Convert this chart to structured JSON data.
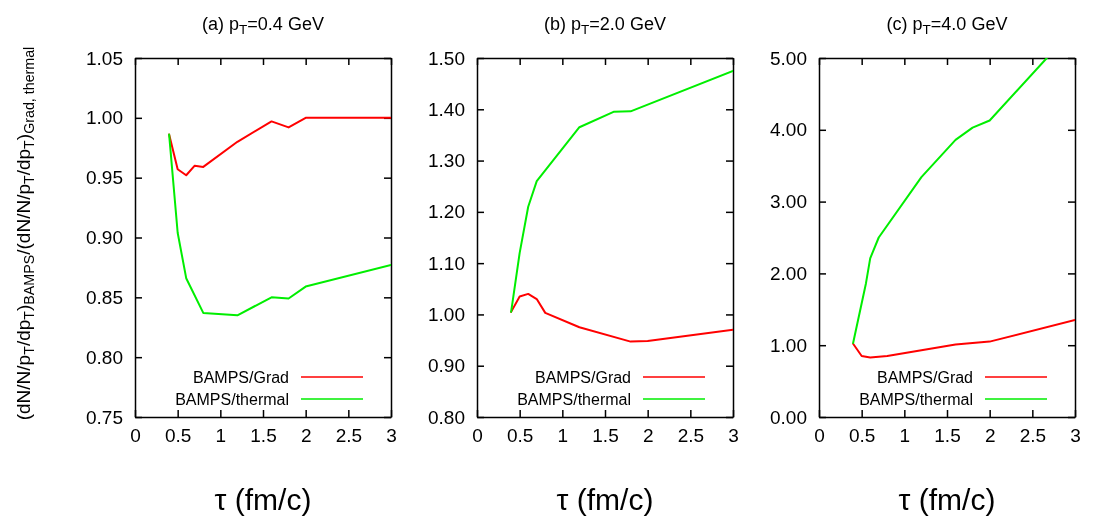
{
  "chart_data": [
    {
      "type": "line",
      "title": "(a) p$_{T}$=0.4 GeV",
      "xlabel": "τ (fm/c)",
      "ylabel": "(dN/N/p$_{T}$/dp$_{T}$)$_{BAMPS}$/(dN/N/p$_{T}$/dp$_{T}$)$_{Grad, thermal}$",
      "xlim": [
        0,
        3
      ],
      "xticks": [
        0,
        0.5,
        1,
        1.5,
        2,
        2.5,
        3
      ],
      "ylim": [
        0.75,
        1.05
      ],
      "yticks": [
        {
          "value": 0.75,
          "label": "0.75"
        },
        {
          "value": 0.8,
          "label": "0.80"
        },
        {
          "value": 0.85,
          "label": "0.85"
        },
        {
          "value": 0.9,
          "label": "0.90"
        },
        {
          "value": 0.95,
          "label": "0.95"
        },
        {
          "value": 1,
          "label": "1.00"
        },
        {
          "value": 1.05,
          "label": "1.05"
        }
      ],
      "legend": "bottom right",
      "grid": false,
      "marker": "none",
      "series": [
        {
          "name": "BAMPS/Grad",
          "color": "#ff0000",
          "x": [
            0.4,
            0.5,
            0.6,
            0.7,
            0.8,
            1.2,
            1.6,
            1.8,
            2.0,
            3.0
          ],
          "values": [
            0.986,
            0.957,
            0.952,
            0.96,
            0.959,
            0.98,
            0.997,
            0.992,
            1.0,
            1.0
          ]
        },
        {
          "name": "BAMPS/thermal",
          "color": "#00ee00",
          "x": [
            0.4,
            0.5,
            0.6,
            0.8,
            1.2,
            1.6,
            1.8,
            2.0,
            3.0
          ],
          "values": [
            0.986,
            0.904,
            0.866,
            0.837,
            0.835,
            0.85,
            0.849,
            0.859,
            0.877
          ]
        }
      ]
    },
    {
      "type": "line",
      "title": "(b) p$_{T}$=2.0 GeV",
      "xlabel": "τ (fm/c)",
      "xlim": [
        0,
        3
      ],
      "xticks": [
        0,
        0.5,
        1,
        1.5,
        2,
        2.5,
        3
      ],
      "ylim": [
        0.8,
        1.5
      ],
      "yticks": [
        {
          "value": 0.8,
          "label": "0.80"
        },
        {
          "value": 0.9,
          "label": "0.90"
        },
        {
          "value": 1,
          "label": "1.00"
        },
        {
          "value": 1.1,
          "label": "1.10"
        },
        {
          "value": 1.2,
          "label": "1.20"
        },
        {
          "value": 1.3,
          "label": "1.30"
        },
        {
          "value": 1.4,
          "label": "1.40"
        },
        {
          "value": 1.5,
          "label": "1.50"
        }
      ],
      "legend": "bottom right",
      "grid": false,
      "marker": "none",
      "series": [
        {
          "name": "BAMPS/Grad",
          "color": "#ff0000",
          "x": [
            0.4,
            0.5,
            0.6,
            0.7,
            0.8,
            1.2,
            1.8,
            2.0,
            3.0
          ],
          "values": [
            1.005,
            1.035,
            1.04,
            1.03,
            1.003,
            0.975,
            0.947,
            0.948,
            0.97
          ]
        },
        {
          "name": "BAMPS/thermal",
          "color": "#00ee00",
          "x": [
            0.4,
            0.5,
            0.6,
            0.7,
            1.2,
            1.6,
            1.8,
            3.0
          ],
          "values": [
            1.005,
            1.12,
            1.21,
            1.26,
            1.365,
            1.395,
            1.396,
            1.475
          ]
        }
      ]
    },
    {
      "type": "line",
      "title": "(c) p$_{T}$=4.0 GeV",
      "xlabel": "τ (fm/c)",
      "xlim": [
        0,
        3
      ],
      "xticks": [
        0,
        0.5,
        1,
        1.5,
        2,
        2.5,
        3
      ],
      "ylim": [
        0,
        5
      ],
      "yticks": [
        {
          "value": 0,
          "label": "0.00"
        },
        {
          "value": 1,
          "label": "1.00"
        },
        {
          "value": 2,
          "label": "2.00"
        },
        {
          "value": 3,
          "label": "3.00"
        },
        {
          "value": 4,
          "label": "4.00"
        },
        {
          "value": 5,
          "label": "5.00"
        }
      ],
      "legend": "bottom right",
      "grid": false,
      "marker": "none",
      "series": [
        {
          "name": "BAMPS/Grad",
          "color": "#ff0000",
          "x": [
            0.4,
            0.5,
            0.6,
            0.8,
            1.2,
            1.6,
            2.0,
            3.0
          ],
          "values": [
            1.02,
            0.85,
            0.83,
            0.85,
            0.93,
            1.01,
            1.05,
            1.35
          ]
        },
        {
          "name": "BAMPS/thermal",
          "color": "#00ee00",
          "x": [
            0.4,
            0.55,
            0.6,
            0.7,
            1.2,
            1.6,
            1.8,
            2.0,
            2.67
          ],
          "values": [
            1.03,
            1.86,
            2.21,
            2.5,
            3.34,
            3.86,
            4.03,
            4.13,
            5.0
          ]
        }
      ]
    }
  ]
}
